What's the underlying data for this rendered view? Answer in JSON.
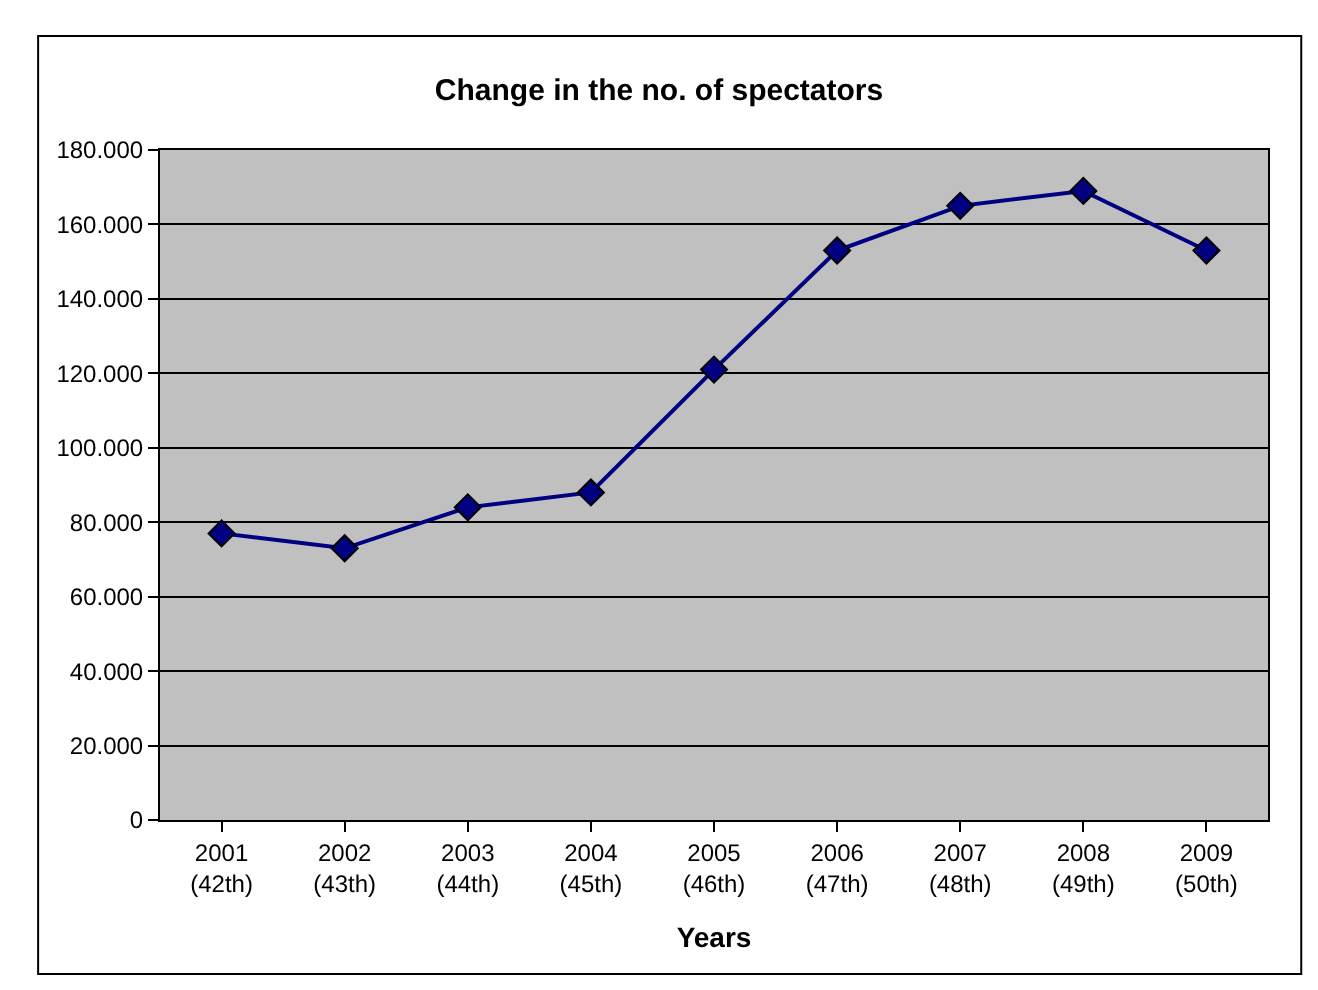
{
  "chart_data": {
    "type": "line",
    "title": "Change in the no. of spectators",
    "xlabel": "Years",
    "categories": [
      "2001\n(42th)",
      "2002\n(43th)",
      "2003\n(44th)",
      "2004\n(45th)",
      "2005\n(46th)",
      "2006\n(47th)",
      "2007\n(48th)",
      "2008\n(49th)",
      "2009\n(50th)"
    ],
    "series": [
      {
        "color": "#000080",
        "values": [
          77000,
          73000,
          84000,
          88000,
          121000,
          153000,
          165000,
          169000,
          153000
        ]
      }
    ],
    "ylim": [
      0,
      180000
    ],
    "yticks": [
      0,
      {
        "value": 20000,
        "label": "20.000"
      },
      {
        "value": 40000,
        "label": "40.000"
      },
      {
        "value": 60000,
        "label": "60.000"
      },
      {
        "value": 80000,
        "label": "80.000"
      },
      {
        "value": 100000,
        "label": "100.000"
      },
      {
        "value": 120000,
        "label": "120.000"
      },
      {
        "value": 140000,
        "label": "140.000"
      },
      {
        "value": 160000,
        "label": "160.000"
      },
      {
        "value": 180000,
        "label": "180.000"
      }
    ],
    "grid": "y",
    "marker": "diamond",
    "line_style": "solid",
    "legend": false
  }
}
